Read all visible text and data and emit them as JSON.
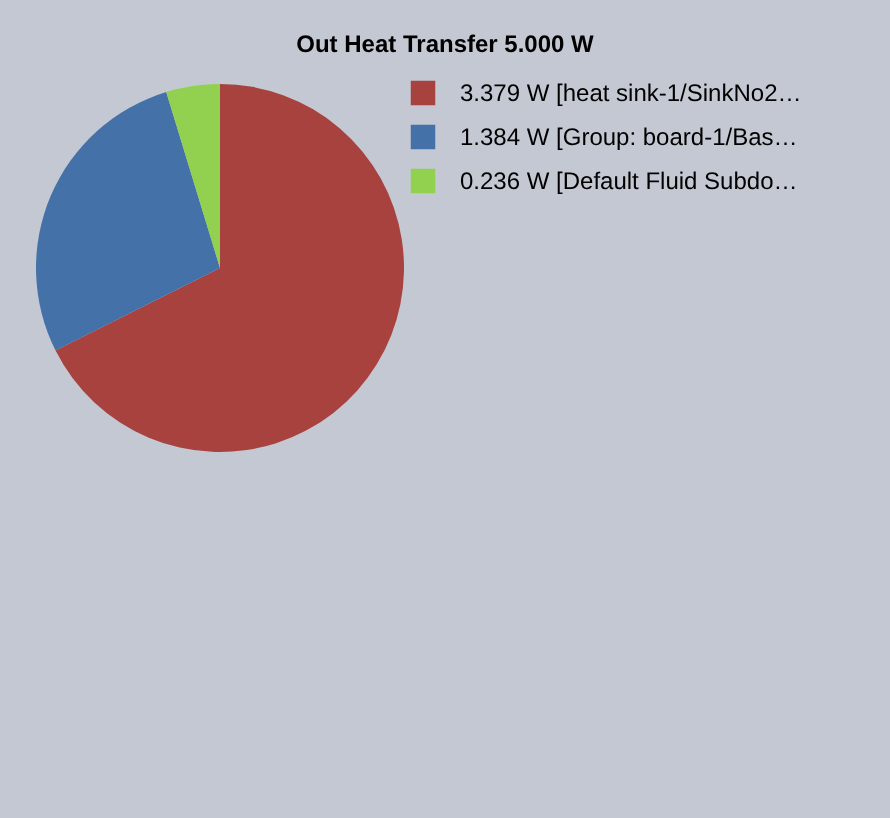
{
  "chart_data": {
    "type": "pie",
    "title": "Out Heat Transfer 5.000 W",
    "categories": [
      "3.379 W [heat sink-1/SinkNo2…",
      "1.384 W [Group: board-1/Bas…",
      "0.236 W [Default Fluid Subdo…"
    ],
    "values": [
      3.379,
      1.384,
      0.236
    ],
    "colors": [
      "#a8423f",
      "#4471a8",
      "#92d050"
    ],
    "legend": "top right"
  }
}
